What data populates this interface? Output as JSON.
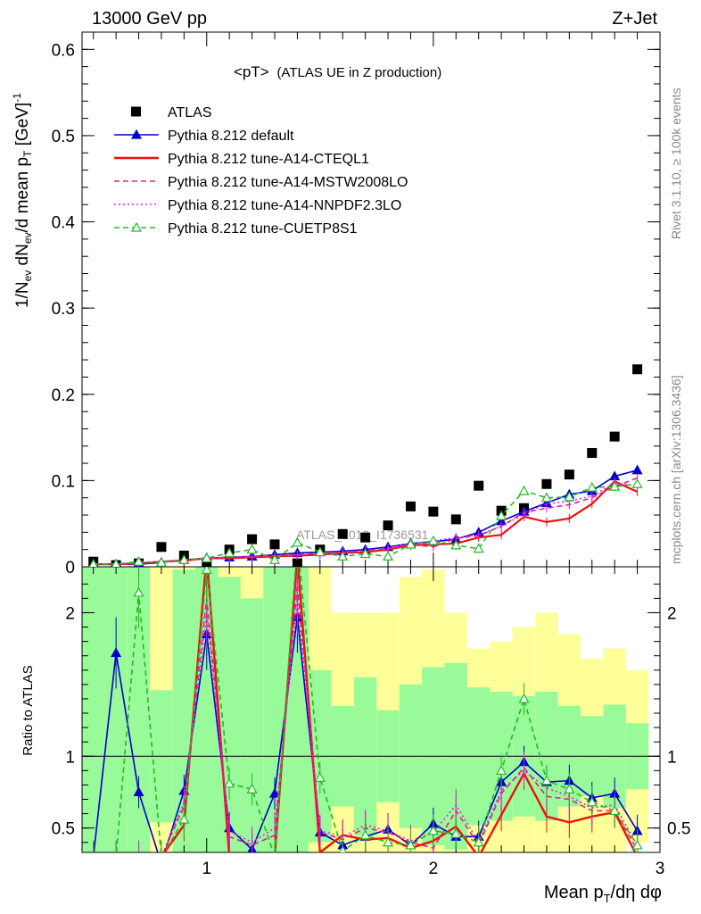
{
  "header": {
    "energy_label": "13000 GeV pp",
    "process_label": "Z+Jet",
    "plot_title": "<pT>",
    "plot_subtitle": "(ATLAS UE in Z production)",
    "watermark": "ATLAS_2019_I1736531",
    "side_label_top": "Rivet 3.1.10, ≥ 100k events",
    "side_label_bottom": "mcplots.cern.ch [arXiv:1306.3436]"
  },
  "axes": {
    "ylabel_main": "1/N_ev dN_ev/d mean p_T [GeV]^-1",
    "ylabel_ratio": "Ratio to ATLAS",
    "xlabel": "Mean p_T/dη dφ"
  },
  "colors": {
    "atlas": "#000000",
    "default": "#0000cc",
    "cteql1": "#ee1111",
    "mstw": "#e0208a",
    "nnpdf": "#e020e0",
    "cuetp8s1": "#22bb22",
    "band_inner": "#99fa99",
    "band_outer": "#ffff99"
  },
  "chart_data": {
    "type": "scatter",
    "x": [
      0.5,
      0.6,
      0.7,
      0.8,
      0.9,
      1.0,
      1.1,
      1.2,
      1.3,
      1.4,
      1.5,
      1.6,
      1.7,
      1.8,
      1.9,
      2.0,
      2.1,
      2.2,
      2.3,
      2.4,
      2.5,
      2.6,
      2.7,
      2.8,
      2.9
    ],
    "xlim": [
      0.45,
      3.0
    ],
    "xticks": [
      1,
      2,
      3
    ],
    "ylim": [
      0,
      0.62
    ],
    "yticks": [
      0,
      0.1,
      0.2,
      0.3,
      0.4,
      0.5,
      0.6
    ],
    "ratio_ylim": [
      0.33,
      2.32
    ],
    "ratio_yticks": [
      0.5,
      1,
      2
    ],
    "series": [
      {
        "name": "ATLAS",
        "key": "atlas",
        "style": "data",
        "values": [
          0.006,
          0.002,
          0.004,
          0.023,
          0.013,
          0.005,
          0.02,
          0.032,
          0.026,
          0.004,
          0.02,
          0.038,
          0.034,
          0.048,
          0.07,
          0.064,
          0.055,
          0.094,
          0.065,
          0.068,
          0.096,
          0.107,
          0.132,
          0.151,
          0.229
        ]
      },
      {
        "name": "Pythia 8.212 default",
        "key": "default",
        "style": "solid",
        "marker": "triangle",
        "values": [
          0.003,
          0.003,
          0.003,
          0.005,
          0.008,
          0.01,
          0.011,
          0.012,
          0.014,
          0.016,
          0.017,
          0.018,
          0.02,
          0.023,
          0.027,
          0.029,
          0.032,
          0.04,
          0.053,
          0.064,
          0.074,
          0.084,
          0.088,
          0.105,
          0.112
        ]
      },
      {
        "name": "Pythia 8.212 tune-A14-CTEQL1",
        "key": "cteql1",
        "style": "solid",
        "marker": "none",
        "values": [
          0.003,
          0.003,
          0.004,
          0.006,
          0.007,
          0.01,
          0.01,
          0.011,
          0.012,
          0.013,
          0.014,
          0.016,
          0.017,
          0.02,
          0.025,
          0.026,
          0.027,
          0.034,
          0.037,
          0.058,
          0.052,
          0.056,
          0.073,
          0.099,
          0.087
        ]
      },
      {
        "name": "Pythia 8.212 tune-A14-MSTW2008LO",
        "key": "mstw",
        "style": "dashed",
        "marker": "none",
        "values": [
          0.003,
          0.003,
          0.004,
          0.006,
          0.008,
          0.01,
          0.011,
          0.012,
          0.013,
          0.014,
          0.016,
          0.017,
          0.018,
          0.021,
          0.026,
          0.023,
          0.033,
          0.036,
          0.047,
          0.063,
          0.068,
          0.072,
          0.08,
          0.093,
          0.103
        ]
      },
      {
        "name": "Pythia 8.212 tune-A14-NNPDF2.3LO",
        "key": "nnpdf",
        "style": "dotted",
        "marker": "none",
        "values": [
          0.003,
          0.003,
          0.004,
          0.006,
          0.008,
          0.01,
          0.011,
          0.012,
          0.013,
          0.014,
          0.016,
          0.017,
          0.019,
          0.022,
          0.027,
          0.03,
          0.034,
          0.037,
          0.047,
          0.061,
          0.073,
          0.076,
          0.082,
          0.097,
          0.094
        ]
      },
      {
        "name": "Pythia 8.212 tune-CUETP8S1",
        "key": "cuetp8s1",
        "style": "dashed",
        "marker": "open-triangle",
        "values": [
          0.003,
          0.003,
          0.006,
          0.005,
          0.008,
          0.01,
          0.016,
          0.02,
          0.008,
          0.028,
          0.017,
          0.012,
          0.015,
          0.012,
          0.026,
          0.03,
          0.025,
          0.021,
          0.059,
          0.088,
          0.08,
          0.081,
          0.092,
          0.093,
          0.096
        ]
      }
    ],
    "ratio": {
      "band_inner": [
        3.0,
        3.0,
        3.0,
        1.46,
        2.3,
        3.0,
        2.25,
        2.1,
        3.0,
        3.0,
        1.6,
        1.35,
        1.55,
        1.32,
        1.5,
        1.62,
        1.65,
        1.48,
        1.45,
        1.42,
        1.45,
        1.35,
        1.28,
        1.36,
        1.23
      ],
      "band_outer": [
        3.0,
        3.0,
        3.0,
        3.0,
        3.0,
        3.0,
        3.0,
        3.0,
        3.0,
        3.0,
        3.0,
        2.0,
        2.0,
        2.0,
        2.25,
        2.3,
        2.0,
        1.75,
        1.8,
        1.9,
        2.0,
        1.85,
        1.68,
        1.75,
        1.6
      ],
      "series": [
        {
          "key": "default",
          "values": [
            0.3,
            1.72,
            0.75,
            0.25,
            0.76,
            1.85,
            0.5,
            0.35,
            0.74,
            1.97,
            0.47,
            0.38,
            0.44,
            0.49,
            0.38,
            0.53,
            0.44,
            0.44,
            0.82,
            0.96,
            0.82,
            0.83,
            0.71,
            0.74,
            0.48
          ]
        },
        {
          "key": "cteql1",
          "values": [
            0.3,
            0.3,
            0.3,
            0.3,
            0.52,
            2.4,
            0.3,
            0.3,
            0.3,
            2.4,
            0.33,
            0.45,
            0.42,
            0.43,
            0.36,
            0.41,
            0.51,
            0.3,
            0.59,
            0.88,
            0.58,
            0.54,
            0.58,
            0.61,
            0.3
          ]
        },
        {
          "key": "mstw",
          "values": [
            0.3,
            0.3,
            0.3,
            0.3,
            0.65,
            2.1,
            0.44,
            0.38,
            0.45,
            2.2,
            0.47,
            0.42,
            0.5,
            0.47,
            0.4,
            0.36,
            0.62,
            0.38,
            0.74,
            0.92,
            0.72,
            0.7,
            0.62,
            0.62,
            0.35
          ]
        },
        {
          "key": "nnpdf",
          "values": [
            0.3,
            0.3,
            0.3,
            0.3,
            0.68,
            2.0,
            0.48,
            0.4,
            0.5,
            2.1,
            0.48,
            0.44,
            0.52,
            0.48,
            0.41,
            0.47,
            0.66,
            0.4,
            0.76,
            0.9,
            0.78,
            0.72,
            0.64,
            0.66,
            0.38
          ]
        },
        {
          "key": "cuetp8s1",
          "values": [
            0.3,
            0.3,
            2.14,
            0.3,
            0.56,
            2.3,
            0.81,
            0.77,
            0.3,
            2.5,
            0.85,
            0.34,
            0.45,
            0.4,
            0.38,
            0.48,
            0.46,
            0.4,
            0.9,
            1.4,
            0.83,
            0.77,
            0.68,
            0.62,
            0.38
          ]
        }
      ]
    }
  }
}
